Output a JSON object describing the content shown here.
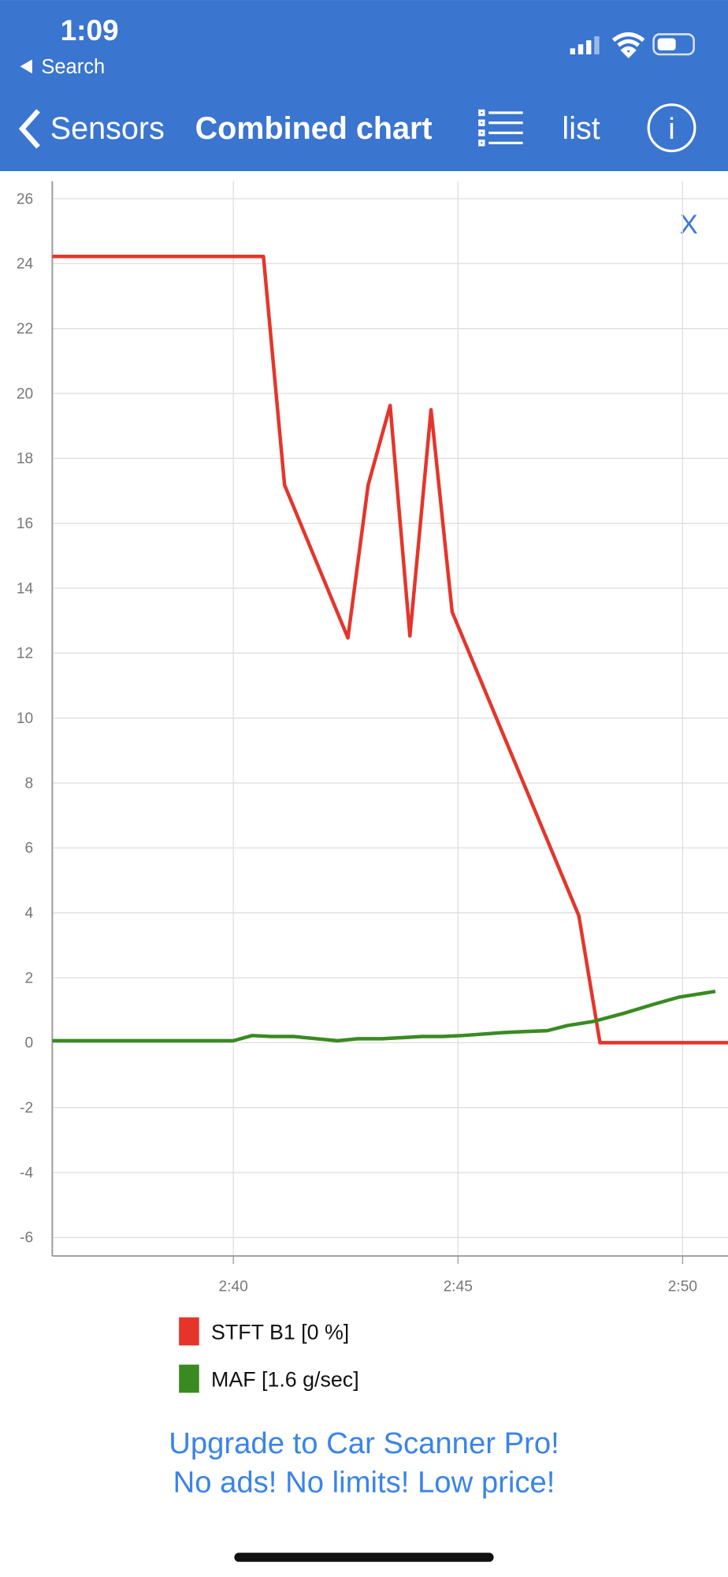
{
  "status_bar": {
    "time": "1:09",
    "back_app": "Search"
  },
  "nav": {
    "back": "Sensors",
    "title": "Combined chart",
    "list": "list"
  },
  "close": "X",
  "chart_data": {
    "type": "line",
    "xlim": [
      155.97,
      171.01
    ],
    "xticks": [
      {
        "value": 160,
        "label": "2:40"
      },
      {
        "value": 165,
        "label": "2:45"
      },
      {
        "value": 170,
        "label": "2:50"
      }
    ],
    "ylim": [
      -6.57,
      26.54
    ],
    "yticks": [
      -6,
      -4,
      -2,
      0,
      2,
      4,
      6,
      8,
      10,
      12,
      14,
      16,
      18,
      20,
      22,
      24,
      26
    ],
    "grid": true,
    "series": [
      {
        "name": "STFT B1 [0 %]",
        "color": "#e5352b",
        "x": [
          155.97,
          160.67,
          161.14,
          162.55,
          163.0,
          163.49,
          163.93,
          164.4,
          164.87,
          167.69,
          168.16,
          171.01
        ],
        "values": [
          24.22,
          24.22,
          17.18,
          12.47,
          17.18,
          19.63,
          12.53,
          19.5,
          13.27,
          3.91,
          0,
          0
        ]
      },
      {
        "name": "MAF [1.6 g/sec]",
        "color": "#3a8a22",
        "x": [
          155.97,
          160,
          160.42,
          160.85,
          161.34,
          162.32,
          162.77,
          163.31,
          164.2,
          164.65,
          165.1,
          165.99,
          166.44,
          166.99,
          167.44,
          168.0,
          168.68,
          169.35,
          169.91,
          170.73
        ],
        "values": [
          0.06,
          0.06,
          0.22,
          0.19,
          0.19,
          0.06,
          0.12,
          0.12,
          0.19,
          0.19,
          0.22,
          0.31,
          0.34,
          0.37,
          0.53,
          0.65,
          0.9,
          1.18,
          1.4,
          1.58
        ]
      }
    ]
  },
  "promo": {
    "line1": "Upgrade to Car Scanner Pro!",
    "line2": "No ads! No limits! Low price!"
  }
}
